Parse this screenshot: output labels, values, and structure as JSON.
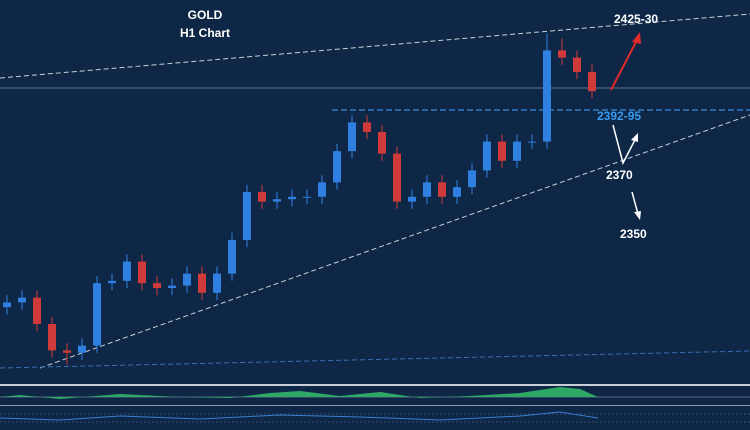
{
  "chart_data": {
    "type": "candlestick",
    "title": "GOLD",
    "subtitle": "H1 Chart",
    "annotations": [
      "2425-30",
      "2392-95",
      "2370",
      "2350"
    ],
    "ylim": [
      2280,
      2440
    ],
    "up_color": "#2f80e0",
    "down_color": "#d03a3a",
    "open": [
      2312,
      2314,
      2316,
      2305,
      2294,
      2293,
      2296,
      2322,
      2323,
      2331,
      2322,
      2320,
      2321,
      2326,
      2318,
      2326,
      2340,
      2360,
      2356,
      2357,
      2358,
      2358,
      2364,
      2377,
      2389,
      2385,
      2376,
      2356,
      2358,
      2364,
      2358,
      2362,
      2369,
      2381,
      2373,
      2381,
      2381,
      2419,
      2416,
      2410
    ],
    "high": [
      2317,
      2319,
      2319,
      2308,
      2297,
      2299,
      2325,
      2326,
      2334,
      2334,
      2325,
      2324,
      2329,
      2329,
      2329,
      2343,
      2363,
      2363,
      2360,
      2361,
      2361,
      2367,
      2380,
      2392,
      2392,
      2388,
      2379,
      2361,
      2367,
      2367,
      2365,
      2372,
      2384,
      2384,
      2384,
      2384,
      2426,
      2424,
      2419,
      2413
    ],
    "low": [
      2309,
      2311,
      2302,
      2291,
      2288,
      2290,
      2293,
      2319,
      2320,
      2319,
      2317,
      2317,
      2318,
      2315,
      2315,
      2323,
      2337,
      2353,
      2353,
      2354,
      2355,
      2355,
      2361,
      2374,
      2382,
      2373,
      2353,
      2353,
      2355,
      2355,
      2355,
      2359,
      2366,
      2370,
      2370,
      2378,
      2378,
      2413,
      2407,
      2399
    ],
    "close": [
      2314,
      2316,
      2305,
      2294,
      2293,
      2296,
      2322,
      2323,
      2331,
      2322,
      2320,
      2321,
      2326,
      2318,
      2326,
      2340,
      2360,
      2356,
      2357,
      2358,
      2358,
      2364,
      2377,
      2389,
      2385,
      2376,
      2356,
      2358,
      2364,
      2358,
      2362,
      2369,
      2381,
      2373,
      2381,
      2381,
      2419,
      2416,
      2410,
      2402
    ]
  }
}
